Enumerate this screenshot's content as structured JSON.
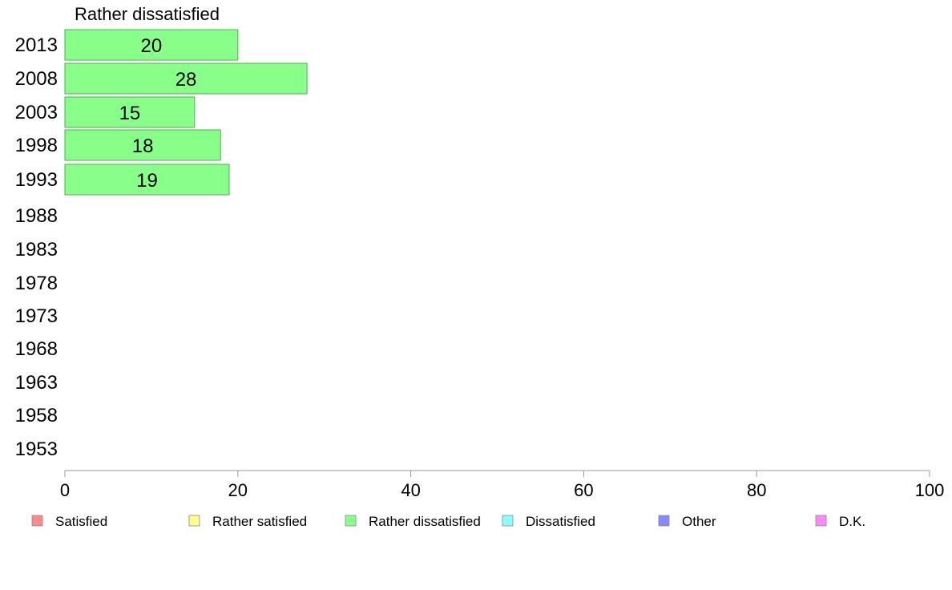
{
  "chart_data": {
    "type": "bar",
    "orientation": "horizontal",
    "title": "Rather dissatisfied",
    "categories": [
      "2013",
      "2008",
      "2003",
      "1998",
      "1993",
      "1988",
      "1983",
      "1978",
      "1973",
      "1968",
      "1963",
      "1958",
      "1953"
    ],
    "series": [
      {
        "name": "Rather dissatisfied",
        "color": "#88ff88",
        "values": [
          20,
          28,
          15,
          18,
          19,
          null,
          null,
          null,
          null,
          null,
          null,
          null,
          null
        ]
      }
    ],
    "xlim": [
      0,
      100
    ],
    "xticks": [
      0,
      20,
      40,
      60,
      80,
      100
    ],
    "grid": false,
    "legend": {
      "placement": "bottom",
      "entries": [
        {
          "label": "Satisfied",
          "color": "#ff8888"
        },
        {
          "label": "Rather satisfied",
          "color": "#ffff88"
        },
        {
          "label": "Rather dissatisfied",
          "color": "#88ff88"
        },
        {
          "label": "Dissatisfied",
          "color": "#88ffff"
        },
        {
          "label": "Other",
          "color": "#8888ff"
        },
        {
          "label": "D.K.",
          "color": "#ff88ff"
        }
      ]
    }
  }
}
